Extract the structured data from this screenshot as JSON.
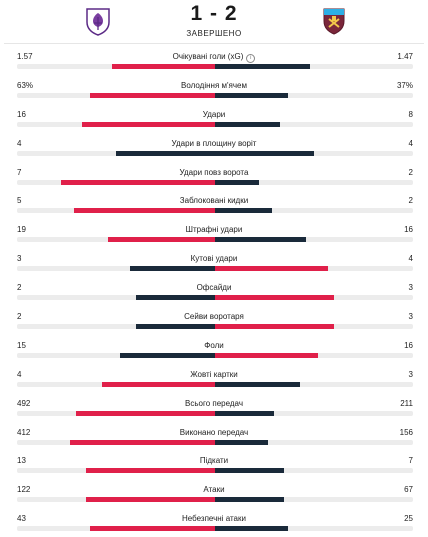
{
  "match": {
    "score": "1 - 2",
    "status": "ЗАВЕРШЕНО",
    "home_logo": "fiorentina-crest-icon",
    "away_logo": "west-ham-crest-icon"
  },
  "colors": {
    "dark": "#1a2a3a",
    "red": "#e0204a",
    "track": "#ececec"
  },
  "stats": [
    {
      "label": "Очікувані голи (xG)",
      "home": "1.57",
      "away": "1.47",
      "home_frac": 0.52,
      "away_frac": 0.48,
      "info": "i"
    },
    {
      "label": "Володіння м'ячем",
      "home": "63%",
      "away": "37%",
      "home_frac": 0.63,
      "away_frac": 0.37
    },
    {
      "label": "Удари",
      "home": "16",
      "away": "8",
      "home_frac": 0.67,
      "away_frac": 0.33
    },
    {
      "label": "Удари в площину воріт",
      "home": "4",
      "away": "4",
      "home_frac": 0.5,
      "away_frac": 0.5
    },
    {
      "label": "Удари повз ворота",
      "home": "7",
      "away": "2",
      "home_frac": 0.78,
      "away_frac": 0.22
    },
    {
      "label": "Заблоковані кидки",
      "home": "5",
      "away": "2",
      "home_frac": 0.71,
      "away_frac": 0.29
    },
    {
      "label": "Штрафні удари",
      "home": "19",
      "away": "16",
      "home_frac": 0.54,
      "away_frac": 0.46
    },
    {
      "label": "Кутові удари",
      "home": "3",
      "away": "4",
      "home_frac": 0.43,
      "away_frac": 0.57
    },
    {
      "label": "Офсайди",
      "home": "2",
      "away": "3",
      "home_frac": 0.4,
      "away_frac": 0.6
    },
    {
      "label": "Сейви воротаря",
      "home": "2",
      "away": "3",
      "home_frac": 0.4,
      "away_frac": 0.6
    },
    {
      "label": "Фоли",
      "home": "15",
      "away": "16",
      "home_frac": 0.48,
      "away_frac": 0.52
    },
    {
      "label": "Жовті картки",
      "home": "4",
      "away": "3",
      "home_frac": 0.57,
      "away_frac": 0.43
    },
    {
      "label": "Всього передач",
      "home": "492",
      "away": "211",
      "home_frac": 0.7,
      "away_frac": 0.3
    },
    {
      "label": "Виконано передач",
      "home": "412",
      "away": "156",
      "home_frac": 0.73,
      "away_frac": 0.27
    },
    {
      "label": "Підкати",
      "home": "13",
      "away": "7",
      "home_frac": 0.65,
      "away_frac": 0.35
    },
    {
      "label": "Атаки",
      "home": "122",
      "away": "67",
      "home_frac": 0.65,
      "away_frac": 0.35
    },
    {
      "label": "Небезпечні атаки",
      "home": "43",
      "away": "25",
      "home_frac": 0.63,
      "away_frac": 0.37
    }
  ]
}
